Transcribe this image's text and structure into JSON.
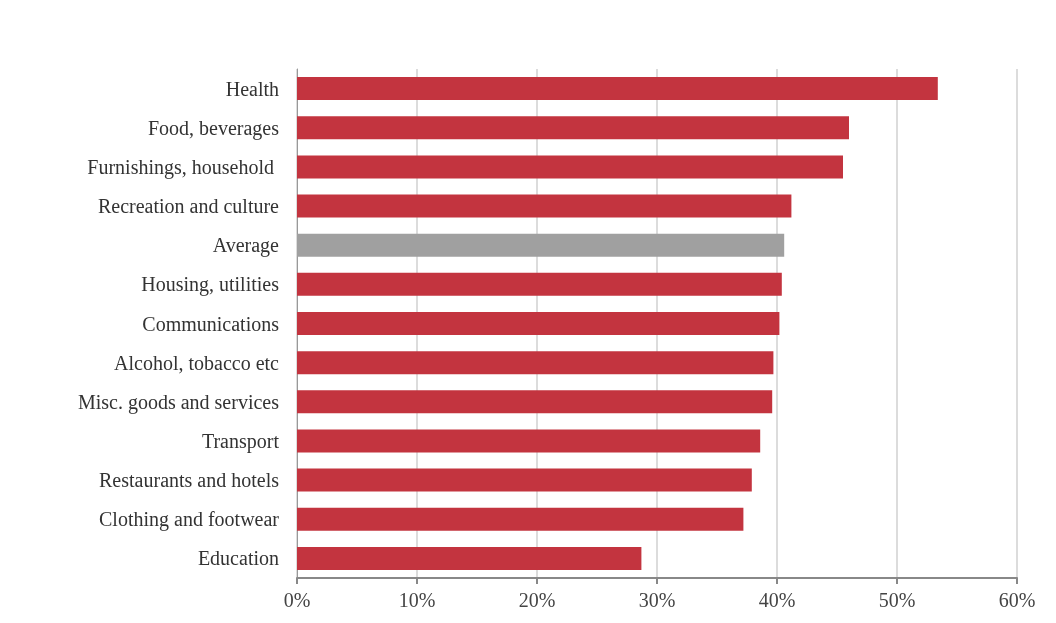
{
  "chart_data": {
    "type": "bar",
    "orientation": "horizontal",
    "categories": [
      "Health",
      "Food, beverages",
      "Furnishings, household ",
      "Recreation and culture",
      "Average",
      "Housing, utilities",
      "Communications",
      "Alcohol, tobacco etc",
      "Misc. goods and services",
      "Transport",
      "Restaurants and hotels",
      "Clothing and footwear",
      "Education"
    ],
    "values": [
      53.4,
      46.0,
      45.5,
      41.2,
      40.6,
      40.4,
      40.2,
      39.7,
      39.6,
      38.6,
      37.9,
      37.2,
      28.7
    ],
    "colors": [
      "#c3343f",
      "#c3343f",
      "#c3343f",
      "#c3343f",
      "#a0a0a0",
      "#c3343f",
      "#c3343f",
      "#c3343f",
      "#c3343f",
      "#c3343f",
      "#c3343f",
      "#c3343f",
      "#c3343f"
    ],
    "xlim": [
      0,
      60
    ],
    "xticks": [
      {
        "value": 0,
        "label": "0%"
      },
      {
        "value": 10,
        "label": "10%"
      },
      {
        "value": 20,
        "label": "20%"
      },
      {
        "value": 30,
        "label": "30%"
      },
      {
        "value": 40,
        "label": "40%"
      },
      {
        "value": 50,
        "label": "50%"
      },
      {
        "value": 60,
        "label": "60%"
      }
    ],
    "grid": "x"
  }
}
